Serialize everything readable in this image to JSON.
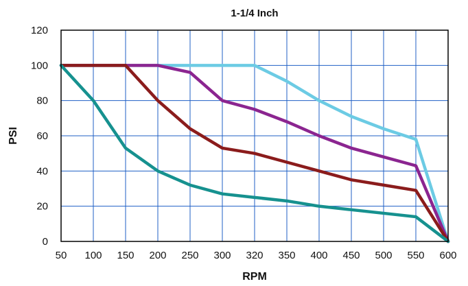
{
  "chart_data": {
    "type": "line",
    "title": "1-1/4 Inch",
    "xlabel": "RPM",
    "ylabel": "PSI",
    "x_categories": [
      "50",
      "100",
      "150",
      "200",
      "250",
      "300",
      "320",
      "350",
      "400",
      "450",
      "500",
      "550",
      "600"
    ],
    "y_ticks": [
      "0",
      "20",
      "40",
      "60",
      "80",
      "100",
      "120"
    ],
    "ylim": [
      0,
      120
    ],
    "grid": true,
    "legend": "none",
    "colors": {
      "grid": "#1f5fc4",
      "frame": "#000000",
      "background": "#ffffff"
    },
    "series": [
      {
        "color": "#6ccbe4",
        "values": [
          100,
          100,
          100,
          100,
          100,
          100,
          100,
          91,
          80,
          71,
          64,
          58,
          0
        ]
      },
      {
        "color": "#8b2590",
        "values": [
          100,
          100,
          100,
          100,
          96,
          80,
          75,
          68,
          60,
          53,
          48,
          43,
          0
        ]
      },
      {
        "color": "#8b1c1c",
        "values": [
          100,
          100,
          100,
          80,
          64,
          53,
          50,
          45,
          40,
          35,
          32,
          29,
          0
        ]
      },
      {
        "color": "#16918f",
        "values": [
          100,
          80,
          53,
          40,
          32,
          27,
          25,
          23,
          20,
          18,
          16,
          14,
          0
        ]
      }
    ]
  }
}
